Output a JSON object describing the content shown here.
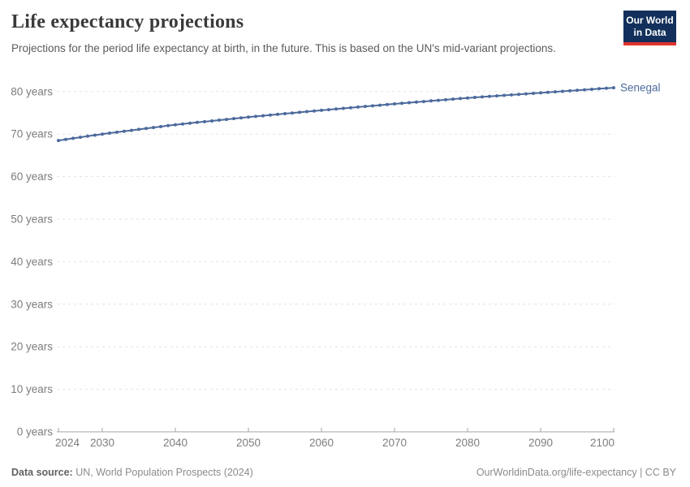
{
  "header": {
    "title": "Life expectancy projections",
    "subtitle": "Projections for the period life expectancy at birth, in the future. This is based on the UN's mid-variant projections.",
    "logo": {
      "line1": "Our World",
      "line2": "in Data",
      "bg_color": "#12305b",
      "accent_color": "#e0322d"
    }
  },
  "chart_data": {
    "type": "line",
    "title": "Life expectancy projections",
    "xlabel": "",
    "ylabel": "",
    "xlim": [
      2024,
      2100
    ],
    "ylim": [
      0,
      80
    ],
    "grid": "horizontal-dashed",
    "legend_position": "end-of-line-label",
    "x_ticks": [
      2024,
      2030,
      2040,
      2050,
      2060,
      2070,
      2080,
      2090,
      2100
    ],
    "x_tick_labels": [
      "2024",
      "2030",
      "2040",
      "2050",
      "2060",
      "2070",
      "2080",
      "2090",
      "2100"
    ],
    "y_ticks": [
      0,
      10,
      20,
      30,
      40,
      50,
      60,
      70,
      80
    ],
    "y_tick_labels": [
      "0 years",
      "10 years",
      "20 years",
      "30 years",
      "40 years",
      "50 years",
      "60 years",
      "70 years",
      "80 years"
    ],
    "x": [
      2024,
      2025,
      2026,
      2027,
      2028,
      2029,
      2030,
      2031,
      2032,
      2033,
      2034,
      2035,
      2036,
      2037,
      2038,
      2039,
      2040,
      2041,
      2042,
      2043,
      2044,
      2045,
      2046,
      2047,
      2048,
      2049,
      2050,
      2051,
      2052,
      2053,
      2054,
      2055,
      2056,
      2057,
      2058,
      2059,
      2060,
      2061,
      2062,
      2063,
      2064,
      2065,
      2066,
      2067,
      2068,
      2069,
      2070,
      2071,
      2072,
      2073,
      2074,
      2075,
      2076,
      2077,
      2078,
      2079,
      2080,
      2081,
      2082,
      2083,
      2084,
      2085,
      2086,
      2087,
      2088,
      2089,
      2090,
      2091,
      2092,
      2093,
      2094,
      2095,
      2096,
      2097,
      2098,
      2099,
      2100
    ],
    "series": [
      {
        "name": "Senegal",
        "color": "#4c6a9c",
        "values": [
          68.5,
          68.75,
          69.0,
          69.25,
          69.5,
          69.75,
          70.0,
          70.22,
          70.44,
          70.66,
          70.88,
          71.1,
          71.32,
          71.54,
          71.76,
          71.98,
          72.2,
          72.38,
          72.56,
          72.74,
          72.92,
          73.1,
          73.28,
          73.46,
          73.64,
          73.82,
          74.0,
          74.16,
          74.32,
          74.48,
          74.64,
          74.8,
          74.96,
          75.12,
          75.28,
          75.44,
          75.6,
          75.75,
          75.9,
          76.05,
          76.2,
          76.35,
          76.5,
          76.65,
          76.8,
          76.95,
          77.1,
          77.24,
          77.38,
          77.52,
          77.66,
          77.8,
          77.94,
          78.08,
          78.22,
          78.36,
          78.5,
          78.62,
          78.74,
          78.86,
          78.98,
          79.1,
          79.22,
          79.34,
          79.46,
          79.58,
          79.7,
          79.82,
          79.94,
          80.06,
          80.18,
          80.3,
          80.42,
          80.54,
          80.66,
          80.78,
          80.9
        ]
      }
    ],
    "style": {
      "grid_color": "#e3e3e3",
      "axis_color": "#a3a3a3",
      "tick_label_color": "#7d7d7d"
    }
  },
  "footer": {
    "source_label": "Data source:",
    "source_text": " UN, World Population Prospects (2024)",
    "right_text": "OurWorldinData.org/life-expectancy | CC BY"
  }
}
